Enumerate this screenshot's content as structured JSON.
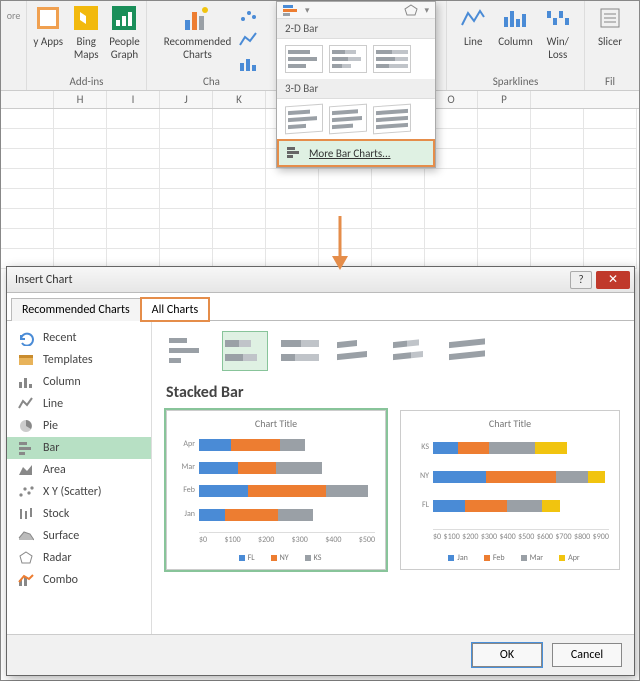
{
  "ribbon": {
    "groups": {
      "addins": {
        "label": "Add-ins",
        "apps": "y Apps",
        "bing": "Bing\nMaps",
        "people": "People\nGraph"
      },
      "charts": {
        "label": "Cha",
        "rec": "Recommended\nCharts"
      },
      "sparklines": {
        "label": "Sparklines",
        "line": "Line",
        "column": "Column",
        "winloss": "Win/\nLoss"
      },
      "filters": {
        "label": "Fil",
        "slicer": "Slicer"
      }
    },
    "dropdown": {
      "sec2d": "2-D Bar",
      "sec3d": "3-D Bar",
      "more": "More Bar Charts..."
    }
  },
  "columns": [
    "H",
    "I",
    "J",
    "K",
    "",
    "",
    "N",
    "O",
    "P"
  ],
  "arrow_color": "#e58d4a",
  "dialog": {
    "title": "Insert Chart",
    "tabs": {
      "rec": "Recommended Charts",
      "all": "All Charts"
    },
    "sidebar": [
      {
        "k": "recent",
        "label": "Recent"
      },
      {
        "k": "templates",
        "label": "Templates"
      },
      {
        "k": "column",
        "label": "Column"
      },
      {
        "k": "line",
        "label": "Line"
      },
      {
        "k": "pie",
        "label": "Pie"
      },
      {
        "k": "bar",
        "label": "Bar",
        "selected": true
      },
      {
        "k": "area",
        "label": "Area"
      },
      {
        "k": "scatter",
        "label": "X Y (Scatter)"
      },
      {
        "k": "stock",
        "label": "Stock"
      },
      {
        "k": "surface",
        "label": "Surface"
      },
      {
        "k": "radar",
        "label": "Radar"
      },
      {
        "k": "combo",
        "label": "Combo"
      }
    ],
    "subtype_name": "Stacked Bar",
    "buttons": {
      "ok": "OK",
      "cancel": "Cancel"
    },
    "preview_title": "Chart Title",
    "colors": {
      "blue": "#4a8bd6",
      "orange": "#ed7d31",
      "gray": "#9aa0a6",
      "yellow": "#f1c40f"
    },
    "preview1": {
      "ylabs": [
        "Apr",
        "Mar",
        "Feb",
        "Jan"
      ],
      "series": [
        "FL",
        "NY",
        "KS"
      ],
      "rows": [
        [
          18,
          28,
          14
        ],
        [
          22,
          22,
          26
        ],
        [
          28,
          44,
          24
        ],
        [
          15,
          30,
          20
        ]
      ],
      "xticks": [
        "$0",
        "$100",
        "$200",
        "$300",
        "$400",
        "$500"
      ],
      "max": 100
    },
    "preview2": {
      "ylabs": [
        "KS",
        "NY",
        "FL"
      ],
      "series": [
        "Jan",
        "Feb",
        "Mar",
        "Apr"
      ],
      "rows": [
        [
          14,
          18,
          26,
          18
        ],
        [
          30,
          40,
          18,
          10
        ],
        [
          18,
          24,
          20,
          10
        ]
      ],
      "xticks": [
        "$0",
        "$100",
        "$200",
        "$300",
        "$400",
        "$500",
        "$600",
        "$700",
        "$800",
        "$900"
      ],
      "max": 100
    }
  }
}
